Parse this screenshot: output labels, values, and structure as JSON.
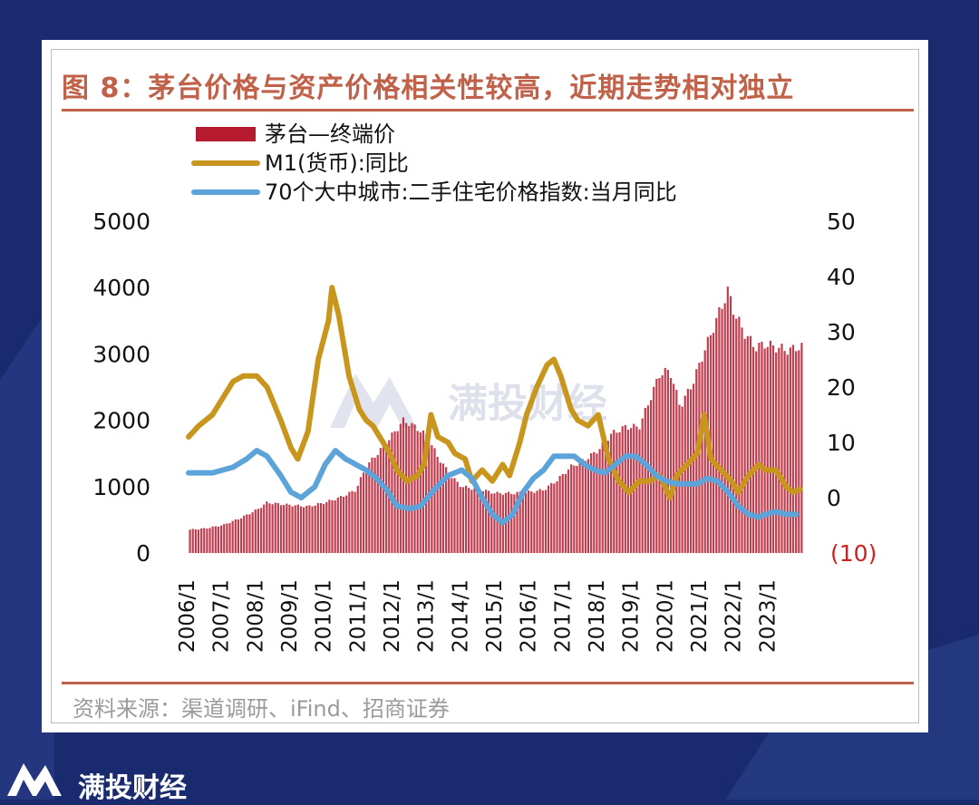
{
  "brand": {
    "name": "满投财经",
    "logo_icon": "mountain-m-logo-icon"
  },
  "watermark": {
    "text": "满投财经"
  },
  "figure": {
    "title": "图 8：茅台价格与资产价格相关性较高，近期走势相对独立",
    "source": "资料来源：渠道调研、iFind、招商证券"
  },
  "colors": {
    "bar": "#b61a2e",
    "m1": "#c8961c",
    "housing": "#5ba3d9",
    "accent": "#c0614a",
    "negative": "#d21e1e"
  },
  "chart_data": {
    "type": "bar+line",
    "legend": [
      {
        "name": "茅台—终端价",
        "kind": "bar"
      },
      {
        "name": "M1(货币):同比",
        "kind": "line"
      },
      {
        "name": "70个大中城市:二手住宅价格指数:当月同比",
        "kind": "line"
      }
    ],
    "x_start": 2006.0,
    "x_end": 2024.0,
    "x_ticks": [
      "2006/1",
      "2007/1",
      "2008/1",
      "2009/1",
      "2010/1",
      "2011/1",
      "2012/1",
      "2013/1",
      "2014/1",
      "2015/1",
      "2016/1",
      "2017/1",
      "2018/1",
      "2019/1",
      "2020/1",
      "2021/1",
      "2022/1",
      "2023/1"
    ],
    "y_left": {
      "min": 0,
      "max": 5000,
      "ticks": [
        "0",
        "1000",
        "2000",
        "3000",
        "4000",
        "5000"
      ]
    },
    "y_right": {
      "min": -10,
      "max": 50,
      "ticks": [
        "(10)",
        "0",
        "10",
        "20",
        "30",
        "40",
        "50"
      ]
    },
    "series": [
      {
        "name": "茅台—终端价",
        "axis": "left",
        "type": "bar",
        "points": [
          [
            2006.0,
            350
          ],
          [
            2006.5,
            370
          ],
          [
            2007.0,
            420
          ],
          [
            2007.5,
            520
          ],
          [
            2008.0,
            650
          ],
          [
            2008.3,
            760
          ],
          [
            2008.8,
            730
          ],
          [
            2009.5,
            700
          ],
          [
            2010.0,
            760
          ],
          [
            2010.5,
            850
          ],
          [
            2010.9,
            950
          ],
          [
            2011.2,
            1300
          ],
          [
            2011.7,
            1600
          ],
          [
            2012.0,
            1800
          ],
          [
            2012.3,
            2000
          ],
          [
            2012.7,
            1880
          ],
          [
            2013.0,
            1750
          ],
          [
            2013.3,
            1450
          ],
          [
            2013.7,
            1150
          ],
          [
            2014.0,
            1000
          ],
          [
            2014.5,
            960
          ],
          [
            2015.0,
            900
          ],
          [
            2015.5,
            900
          ],
          [
            2016.0,
            920
          ],
          [
            2016.4,
            950
          ],
          [
            2016.8,
            1100
          ],
          [
            2017.2,
            1300
          ],
          [
            2017.6,
            1400
          ],
          [
            2018.0,
            1550
          ],
          [
            2018.4,
            1800
          ],
          [
            2018.8,
            1900
          ],
          [
            2019.2,
            1900
          ],
          [
            2019.5,
            2300
          ],
          [
            2019.8,
            2700
          ],
          [
            2020.1,
            2750
          ],
          [
            2020.4,
            2200
          ],
          [
            2020.8,
            2600
          ],
          [
            2021.0,
            2900
          ],
          [
            2021.3,
            3300
          ],
          [
            2021.6,
            3700
          ],
          [
            2021.8,
            3950
          ],
          [
            2022.0,
            3600
          ],
          [
            2022.3,
            3300
          ],
          [
            2022.6,
            3100
          ],
          [
            2022.9,
            3150
          ],
          [
            2023.2,
            3100
          ],
          [
            2023.6,
            3050
          ],
          [
            2023.8,
            3100
          ]
        ]
      },
      {
        "name": "M1(货币):同比",
        "axis": "right",
        "type": "line",
        "points": [
          [
            2006.0,
            11
          ],
          [
            2006.3,
            13
          ],
          [
            2006.7,
            15
          ],
          [
            2007.0,
            18
          ],
          [
            2007.3,
            21
          ],
          [
            2007.6,
            22
          ],
          [
            2008.0,
            22
          ],
          [
            2008.3,
            20
          ],
          [
            2008.7,
            14
          ],
          [
            2009.0,
            9
          ],
          [
            2009.2,
            7
          ],
          [
            2009.5,
            12
          ],
          [
            2009.8,
            25
          ],
          [
            2010.1,
            32
          ],
          [
            2010.2,
            38
          ],
          [
            2010.4,
            33
          ],
          [
            2010.7,
            22
          ],
          [
            2011.0,
            16
          ],
          [
            2011.2,
            14
          ],
          [
            2011.4,
            13
          ],
          [
            2011.6,
            11
          ],
          [
            2011.9,
            8
          ],
          [
            2012.1,
            5
          ],
          [
            2012.4,
            3
          ],
          [
            2012.7,
            4
          ],
          [
            2012.9,
            6
          ],
          [
            2013.1,
            15
          ],
          [
            2013.3,
            11
          ],
          [
            2013.6,
            10
          ],
          [
            2013.8,
            8
          ],
          [
            2014.1,
            7
          ],
          [
            2014.3,
            3
          ],
          [
            2014.6,
            5
          ],
          [
            2014.9,
            3
          ],
          [
            2015.2,
            6
          ],
          [
            2015.4,
            4
          ],
          [
            2015.7,
            10
          ],
          [
            2015.9,
            15
          ],
          [
            2016.2,
            20
          ],
          [
            2016.5,
            24
          ],
          [
            2016.7,
            25
          ],
          [
            2016.9,
            22
          ],
          [
            2017.2,
            16
          ],
          [
            2017.4,
            14
          ],
          [
            2017.7,
            13
          ],
          [
            2018.0,
            15
          ],
          [
            2018.3,
            7
          ],
          [
            2018.6,
            3
          ],
          [
            2018.9,
            1
          ],
          [
            2019.2,
            3
          ],
          [
            2019.5,
            3
          ],
          [
            2019.8,
            4
          ],
          [
            2020.1,
            0
          ],
          [
            2020.3,
            4
          ],
          [
            2020.6,
            6
          ],
          [
            2020.9,
            8
          ],
          [
            2021.1,
            15
          ],
          [
            2021.3,
            7
          ],
          [
            2021.6,
            5
          ],
          [
            2021.9,
            3
          ],
          [
            2022.1,
            1
          ],
          [
            2022.4,
            4
          ],
          [
            2022.7,
            6
          ],
          [
            2022.9,
            5
          ],
          [
            2023.2,
            5
          ],
          [
            2023.5,
            2
          ],
          [
            2023.7,
            1
          ],
          [
            2023.9,
            1.5
          ]
        ]
      },
      {
        "name": "70个大中城市:二手住宅价格指数:当月同比",
        "axis": "right",
        "type": "line",
        "points": [
          [
            2006.0,
            4.5
          ],
          [
            2006.3,
            4.5
          ],
          [
            2006.7,
            4.5
          ],
          [
            2007.0,
            5
          ],
          [
            2007.3,
            5.5
          ],
          [
            2007.7,
            7
          ],
          [
            2008.0,
            8.5
          ],
          [
            2008.3,
            7.5
          ],
          [
            2008.7,
            4
          ],
          [
            2009.0,
            1
          ],
          [
            2009.3,
            0
          ],
          [
            2009.7,
            2
          ],
          [
            2010.0,
            6
          ],
          [
            2010.3,
            8.5
          ],
          [
            2010.6,
            7
          ],
          [
            2010.9,
            6
          ],
          [
            2011.2,
            5
          ],
          [
            2011.5,
            3.5
          ],
          [
            2011.8,
            1.5
          ],
          [
            2012.1,
            -1.5
          ],
          [
            2012.5,
            -2
          ],
          [
            2012.8,
            -1.5
          ],
          [
            2013.2,
            1.5
          ],
          [
            2013.6,
            4
          ],
          [
            2014.0,
            5
          ],
          [
            2014.3,
            3.5
          ],
          [
            2014.6,
            0
          ],
          [
            2014.9,
            -3
          ],
          [
            2015.2,
            -4.5
          ],
          [
            2015.5,
            -3
          ],
          [
            2015.8,
            1
          ],
          [
            2016.1,
            3.5
          ],
          [
            2016.4,
            5
          ],
          [
            2016.7,
            7.5
          ],
          [
            2017.0,
            7.5
          ],
          [
            2017.3,
            7.5
          ],
          [
            2017.6,
            6
          ],
          [
            2017.9,
            5
          ],
          [
            2018.2,
            4.5
          ],
          [
            2018.5,
            6
          ],
          [
            2018.8,
            7.5
          ],
          [
            2019.1,
            7.5
          ],
          [
            2019.4,
            6
          ],
          [
            2019.7,
            4
          ],
          [
            2020.0,
            3
          ],
          [
            2020.3,
            2.5
          ],
          [
            2020.6,
            2.5
          ],
          [
            2020.9,
            2.5
          ],
          [
            2021.2,
            3.5
          ],
          [
            2021.5,
            3
          ],
          [
            2021.8,
            1
          ],
          [
            2022.1,
            -1.5
          ],
          [
            2022.4,
            -3
          ],
          [
            2022.7,
            -3.5
          ],
          [
            2022.9,
            -3
          ],
          [
            2023.2,
            -2.5
          ],
          [
            2023.5,
            -3
          ],
          [
            2023.8,
            -3
          ]
        ]
      }
    ]
  }
}
